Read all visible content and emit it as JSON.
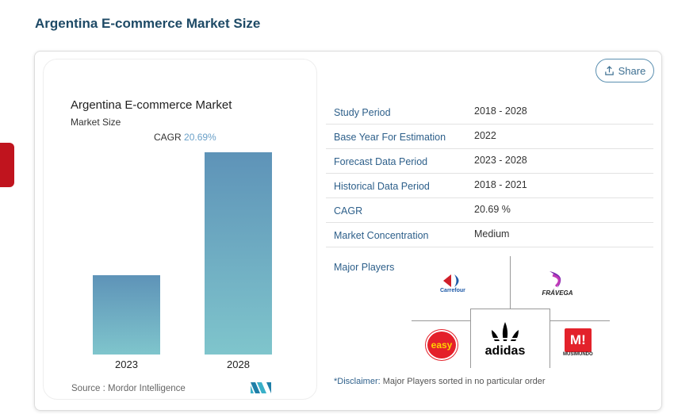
{
  "page_title": "Argentina E-commerce Market Size",
  "share_label": "Share",
  "chart_data": {
    "type": "bar",
    "title": "Argentina E-commerce Market",
    "subtitle": "Market Size",
    "cagr_label": "CAGR",
    "cagr_value": "20.69%",
    "categories": [
      "2023",
      "2028"
    ],
    "values": [
      1.0,
      2.56
    ],
    "ylabel": "",
    "xlabel": "",
    "source": "Source :  Mordor Intelligence",
    "colors": {
      "top": "#5e93b8",
      "bottom": "#7fc5cc"
    }
  },
  "table": [
    {
      "k": "Study Period",
      "v": "2018 - 2028"
    },
    {
      "k": "Base Year For Estimation",
      "v": "2022"
    },
    {
      "k": "Forecast Data Period",
      "v": "2023 - 2028"
    },
    {
      "k": "Historical Data Period",
      "v": "2018 - 2021"
    },
    {
      "k": "CAGR",
      "v": "20.69 %"
    },
    {
      "k": "Market Concentration",
      "v": "Medium"
    }
  ],
  "major_players_label": "Major Players",
  "players": [
    "Carrefour",
    "FRÁVEGA",
    "easy",
    "adidas",
    "M!",
    "MUSIMUNDO"
  ],
  "disclaimer_prefix": "*Disclaimer:",
  "disclaimer_text": " Major Players sorted in no particular order"
}
